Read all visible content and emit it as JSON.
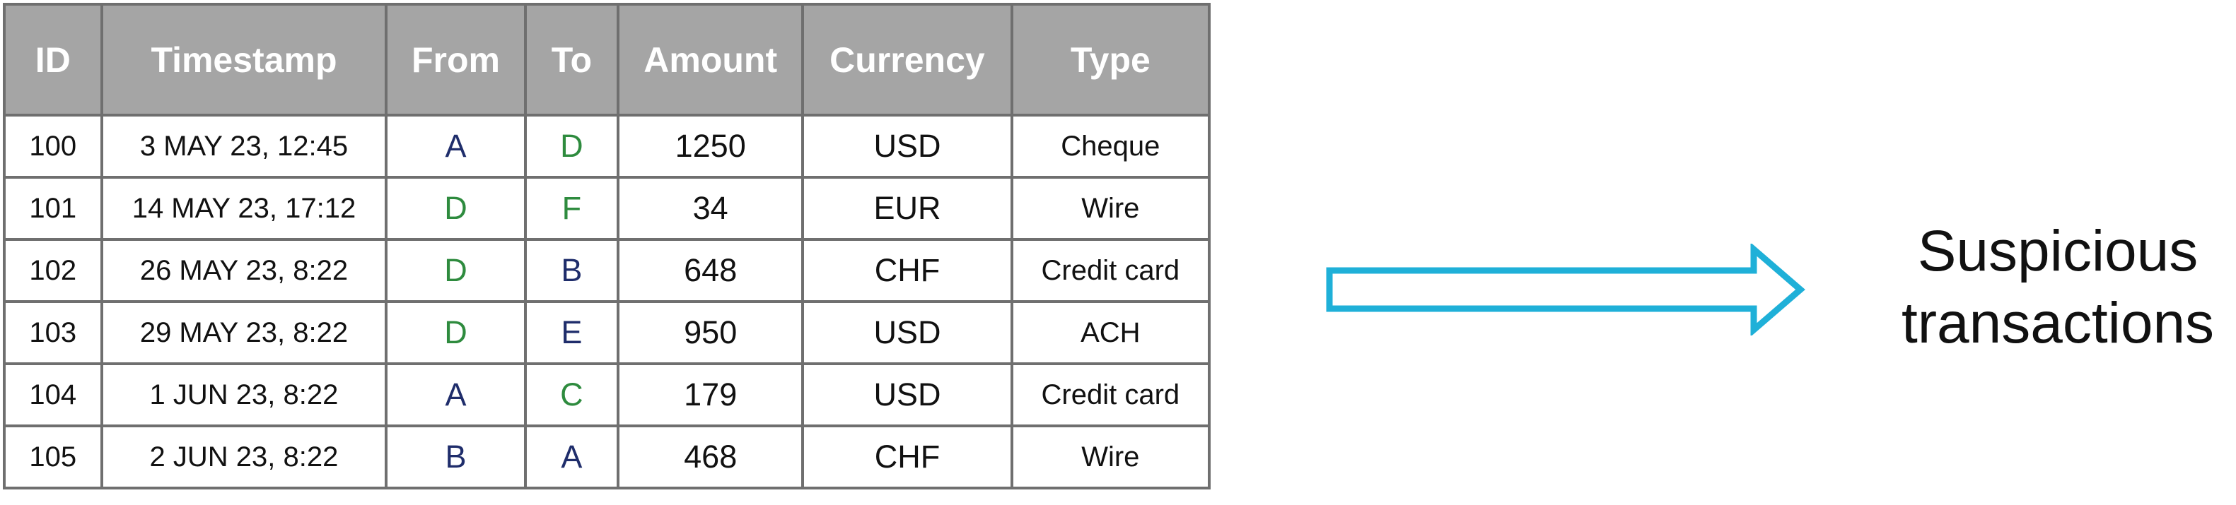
{
  "table": {
    "headers": [
      "ID",
      "Timestamp",
      "From",
      "To",
      "Amount",
      "Currency",
      "Type"
    ],
    "rows": [
      {
        "id": "100",
        "timestamp": "3 MAY 23, 12:45",
        "from": "A",
        "to": "D",
        "amount": "1250",
        "currency": "USD",
        "type": "Cheque"
      },
      {
        "id": "101",
        "timestamp": "14 MAY 23, 17:12",
        "from": "D",
        "to": "F",
        "amount": "34",
        "currency": "EUR",
        "type": "Wire"
      },
      {
        "id": "102",
        "timestamp": "26 MAY 23, 8:22",
        "from": "D",
        "to": "B",
        "amount": "648",
        "currency": "CHF",
        "type": "Credit card"
      },
      {
        "id": "103",
        "timestamp": "29 MAY 23, 8:22",
        "from": "D",
        "to": "E",
        "amount": "950",
        "currency": "USD",
        "type": "ACH"
      },
      {
        "id": "104",
        "timestamp": "1 JUN 23, 8:22",
        "from": "A",
        "to": "C",
        "amount": "179",
        "currency": "USD",
        "type": "Credit card"
      },
      {
        "id": "105",
        "timestamp": "2 JUN 23, 8:22",
        "from": "B",
        "to": "A",
        "amount": "468",
        "currency": "CHF",
        "type": "Wire"
      }
    ]
  },
  "node_colors": {
    "A": "#1f2d6b",
    "B": "#1f2d6b",
    "C": "#2e8b3e",
    "D": "#2e8b3e",
    "E": "#1f2d6b",
    "F": "#2e8b3e"
  },
  "colors": {
    "header_bg": "#a5a5a5",
    "grid": "#6f6f6f",
    "arrow": "#1fb0d8"
  },
  "arrow": {
    "icon": "right-arrow-outline-icon"
  },
  "caption": {
    "line1": "Suspicious",
    "line2": "transactions"
  }
}
